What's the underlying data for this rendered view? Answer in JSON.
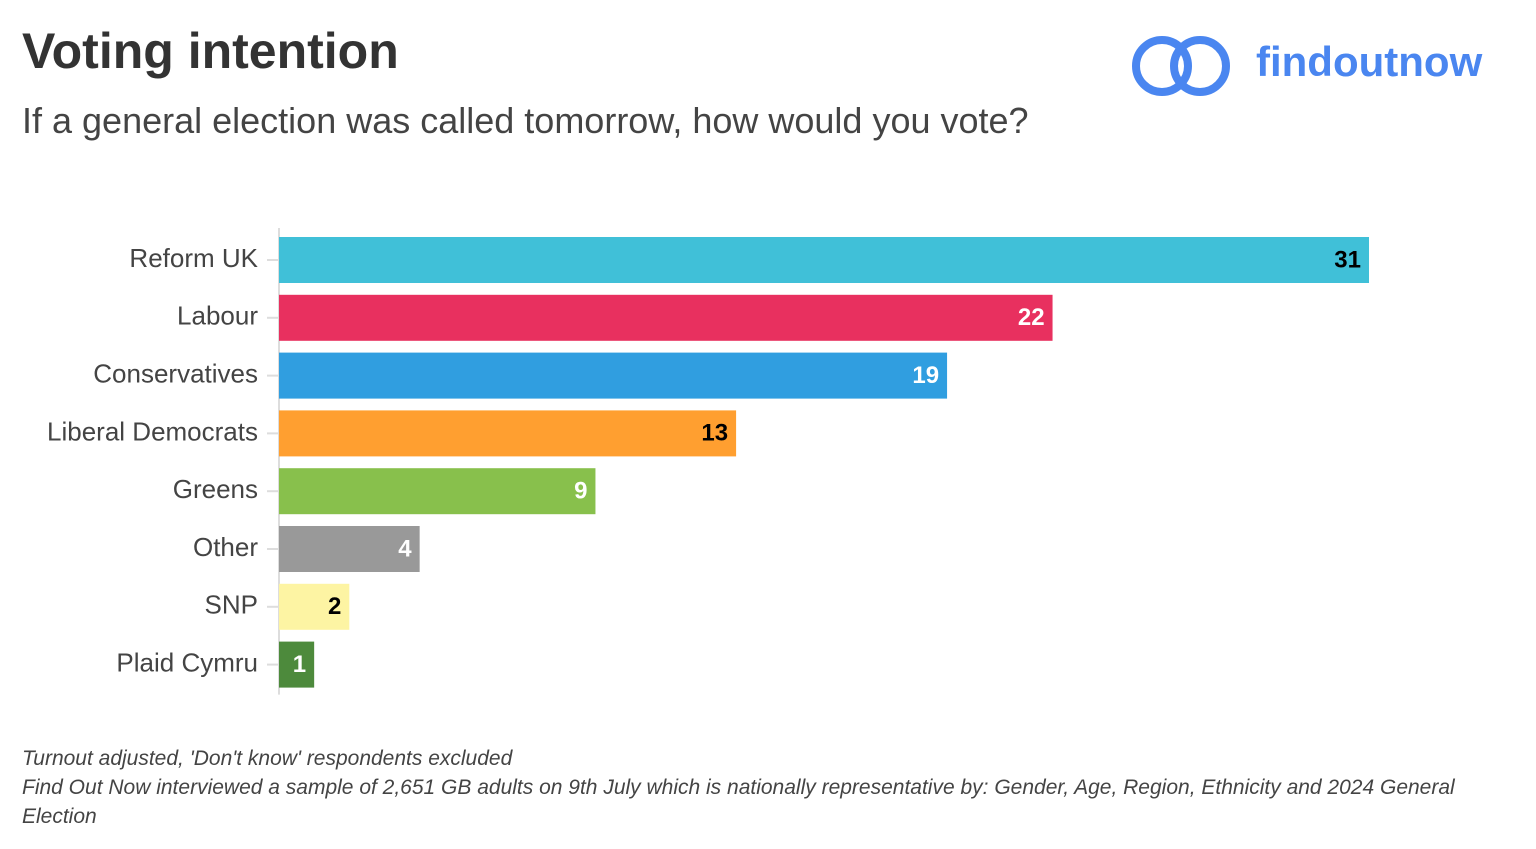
{
  "chart_data": {
    "type": "bar",
    "orientation": "horizontal",
    "title": "Voting intention",
    "subtitle": "If a general election was called tomorrow, how would you vote?",
    "brand": "findoutnow",
    "categories": [
      "Reform UK",
      "Labour",
      "Conservatives",
      "Liberal Democrats",
      "Greens",
      "Other",
      "SNP",
      "Plaid Cymru"
    ],
    "values": [
      31,
      22,
      19,
      13,
      9,
      4,
      2,
      1
    ],
    "colors": [
      "#40c0d8",
      "#e8305f",
      "#309ee0",
      "#ff9f30",
      "#88c04c",
      "#999999",
      "#fdf4a3",
      "#4d8a3c"
    ],
    "label_colors": [
      "#000000",
      "#ffffff",
      "#ffffff",
      "#000000",
      "#ffffff",
      "#ffffff",
      "#000000",
      "#ffffff"
    ],
    "notes": [
      "Turnout adjusted, 'Don't know' respondents excluded",
      "Find Out Now interviewed a sample of 2,651 GB adults on 9th July which is nationally representative by: Gender, Age, Region, Ethnicity and 2024 General Election"
    ]
  }
}
